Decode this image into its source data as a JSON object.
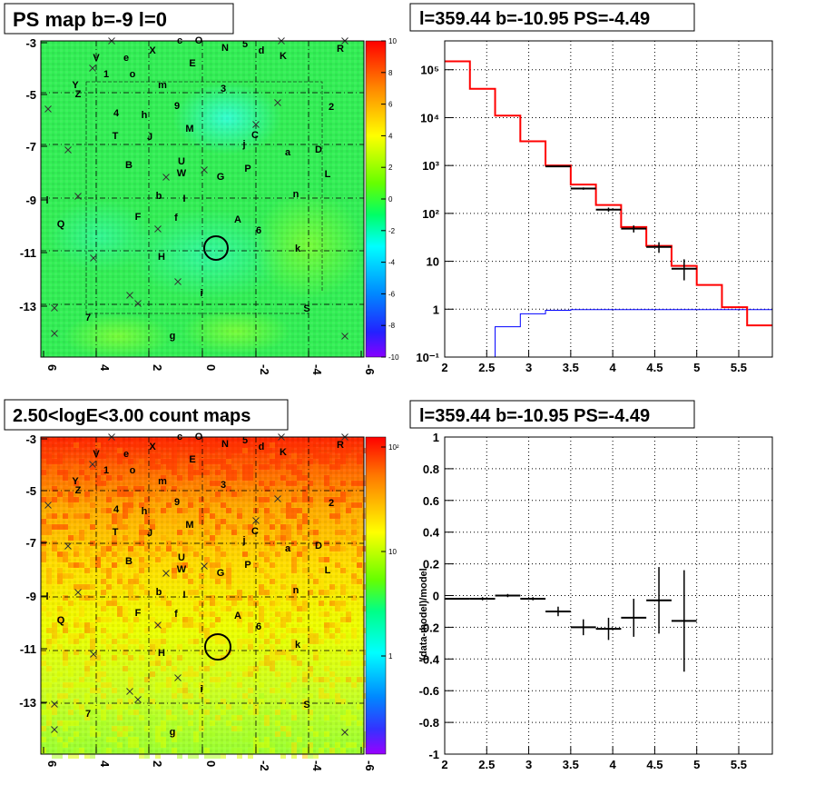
{
  "colors": {
    "data": "#000000",
    "model": "#ff0000",
    "component": "#0000ff",
    "grid": "#000000"
  },
  "panels": {
    "tl": {
      "title": "PS map b=-9 l=0"
    },
    "tr": {
      "title": "l=359.44 b=-10.95 PS=-4.49"
    },
    "bl": {
      "title": "2.50<logE<3.00 count maps"
    },
    "br": {
      "title": "l=359.44 b=-10.95 PS=-4.49"
    }
  },
  "maps": {
    "y_ticks": [
      "-3",
      "-5",
      "-7",
      "-9",
      "-11",
      "-13"
    ],
    "x_ticks": [
      "6",
      "4",
      "2",
      "0",
      "-2",
      "-4",
      "-6"
    ],
    "ps_colorbar_ticks": [
      "10",
      "8",
      "6",
      "4",
      "2",
      "0",
      "-2",
      "-4",
      "-6",
      "-8",
      "-10"
    ],
    "count_colorbar_ticks": [
      "10²",
      "10",
      "1"
    ],
    "source_labels": [
      "c",
      "O",
      "N",
      "5",
      "d",
      "K",
      "R",
      "V",
      "X",
      "e",
      "1",
      "o",
      "E",
      "Y",
      "Z",
      "m",
      "3",
      "9",
      "2",
      "4",
      "h",
      "M",
      "T",
      "J",
      "C",
      "j",
      "a",
      "D",
      "B",
      "U",
      "W",
      "P",
      "G",
      "L",
      "b",
      "I",
      "n",
      "l",
      "F",
      "f",
      "A",
      "6",
      "Q",
      "k",
      "H",
      "i",
      "S",
      "7",
      "g"
    ],
    "source_labels_bottom": [
      "c",
      "O",
      "N",
      "5",
      "d",
      "K",
      "R",
      "V",
      "X",
      "e",
      "1",
      "o",
      "E",
      "Y",
      "Z",
      "m",
      "3",
      "9",
      "2",
      "4",
      "h",
      "M",
      "T",
      "J",
      "C",
      "j",
      "a",
      "D",
      "B",
      "U",
      "W",
      "P",
      "G",
      "L",
      "b",
      "I",
      "n",
      "l",
      "F",
      "f",
      "A",
      "6",
      "Q",
      "k",
      "H",
      "i",
      "S",
      "7",
      "g"
    ]
  },
  "chart_data": [
    {
      "type": "line",
      "subtype": "step-histogram",
      "title": "l=359.44 b=-10.95 PS=-4.49",
      "xlabel": "",
      "ylabel": "",
      "x_ticks": [
        "2",
        "2.5",
        "3",
        "3.5",
        "4",
        "4.5",
        "5",
        "5.5"
      ],
      "y_ticks": [
        "10⁻¹",
        "1",
        "10",
        "10²",
        "10³",
        "10⁴",
        "10⁵"
      ],
      "xlim": [
        2,
        5.9
      ],
      "ylim": [
        0.1,
        400000
      ],
      "yscale": "log",
      "grid": true,
      "bin_edges": [
        2.0,
        2.3,
        2.6,
        2.9,
        3.2,
        3.5,
        3.8,
        4.1,
        4.4,
        4.7,
        5.0,
        5.3,
        5.6,
        5.9
      ],
      "series": [
        {
          "role": "model",
          "values": [
            150000,
            40000,
            11000,
            3200,
            1000,
            400,
            150,
            52,
            21,
            8,
            3.2,
            1.1,
            0.46
          ]
        },
        {
          "role": "component",
          "values": [
            0.1,
            0.1,
            0.43,
            0.8,
            0.95,
            0.98,
            0.98,
            0.98,
            0.98,
            0.98,
            0.98,
            0.98,
            0.98
          ]
        },
        {
          "role": "data",
          "x": [
            3.35,
            3.65,
            3.95,
            4.25,
            4.55,
            4.85
          ],
          "y": [
            960,
            330,
            120,
            48,
            20,
            7
          ],
          "yerr_lo": [
            30,
            18,
            12,
            8,
            5,
            3
          ],
          "yerr_hi": [
            30,
            18,
            12,
            8,
            5,
            4
          ]
        }
      ]
    },
    {
      "type": "scatter",
      "subtype": "errorbar",
      "title": "l=359.44 b=-10.95 PS=-4.49",
      "xlabel": "",
      "ylabel": "(data-model)/model",
      "x_ticks": [
        "2",
        "2.5",
        "3",
        "3.5",
        "4",
        "4.5",
        "5",
        "5.5"
      ],
      "y_ticks": [
        "1",
        "0.8",
        "0.6",
        "0.4",
        "0.2",
        "0",
        "-0.2",
        "-0.4",
        "-0.6",
        "-0.8",
        "-1"
      ],
      "xlim": [
        2,
        5.9
      ],
      "ylim": [
        -1,
        1
      ],
      "grid": true,
      "series": [
        {
          "role": "data",
          "x": [
            2.15,
            2.45,
            2.75,
            3.05,
            3.35,
            3.65,
            3.95,
            4.25,
            4.55,
            4.85
          ],
          "y": [
            -0.02,
            -0.02,
            0.0,
            -0.02,
            -0.1,
            -0.2,
            -0.21,
            -0.14,
            -0.03,
            -0.16
          ],
          "yerr": [
            0.005,
            0.01,
            0.01,
            0.01,
            0.03,
            0.05,
            0.07,
            0.12,
            0.21,
            0.32
          ]
        }
      ]
    }
  ]
}
